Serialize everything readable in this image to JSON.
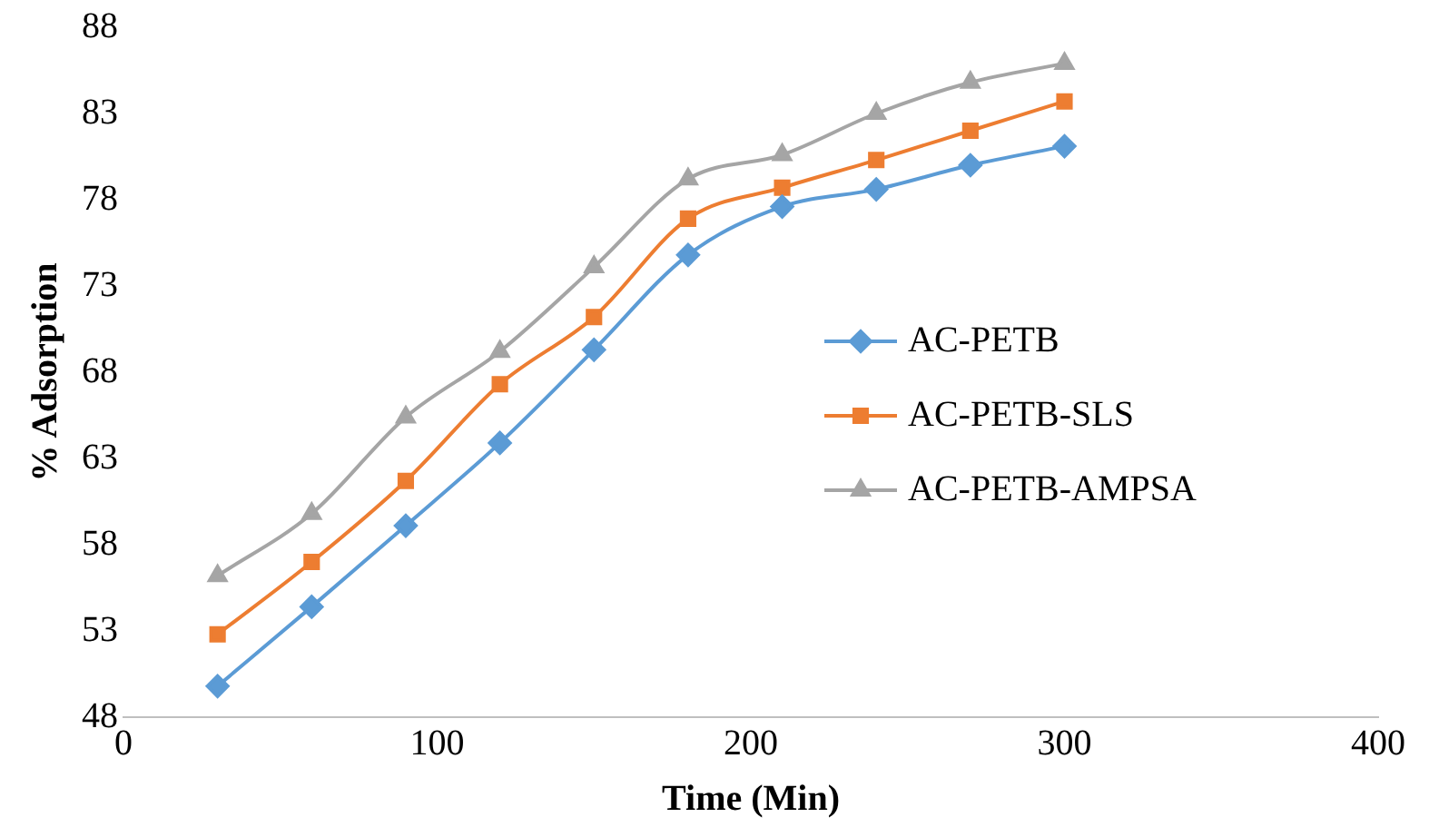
{
  "chart_data": {
    "type": "line",
    "xlabel": "Time (Min)",
    "ylabel": "% Adsorption",
    "x": [
      30,
      60,
      90,
      120,
      150,
      180,
      210,
      240,
      270,
      300
    ],
    "series": [
      {
        "name": "AC-PETB",
        "color": "#5b9bd5",
        "marker": "diamond",
        "values": [
          49.8,
          54.4,
          59.1,
          63.9,
          69.3,
          74.8,
          77.6,
          78.6,
          80.0,
          81.1
        ]
      },
      {
        "name": "AC-PETB-SLS",
        "color": "#ed7d31",
        "marker": "square",
        "values": [
          52.8,
          57.0,
          61.7,
          67.3,
          71.2,
          76.9,
          78.7,
          80.3,
          82.0,
          83.7
        ]
      },
      {
        "name": "AC-PETB-AMPSA",
        "color": "#a5a5a5",
        "marker": "triangle",
        "values": [
          56.2,
          59.8,
          65.4,
          69.2,
          74.1,
          79.2,
          80.6,
          83.0,
          84.8,
          85.9
        ]
      }
    ],
    "xlim": [
      0,
      400
    ],
    "xticks": [
      0,
      100,
      200,
      300,
      400
    ],
    "ylim": [
      48,
      88
    ],
    "yticks": [
      48,
      53,
      58,
      63,
      68,
      73,
      78,
      83,
      88
    ],
    "grid": false,
    "legend": "right"
  }
}
